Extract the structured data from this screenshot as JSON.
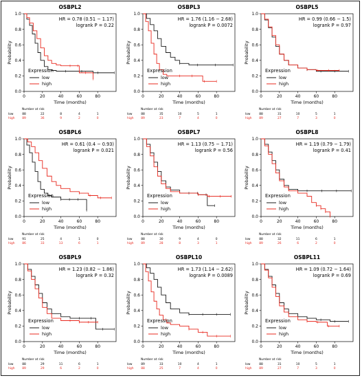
{
  "colors": {
    "low": "#1a1a1a",
    "high": "#e8281e",
    "axis": "#000000",
    "risk_high": "#e8281e"
  },
  "common": {
    "xlabel": "Time (months)",
    "ylabel": "Probability",
    "legend_title": "Expression",
    "legend_low": "low",
    "legend_high": "high",
    "risk_title": "Number at risk",
    "risk_low": "low",
    "risk_high": "high"
  },
  "chart_data": [
    {
      "type": "line",
      "title": "OSBPL2",
      "hr_text": "HR = 0.78 (0.51 − 1.17)",
      "p_text": "logrank P = 0.22",
      "xlim": [
        0,
        100
      ],
      "ylim": [
        0,
        1
      ],
      "xticks": [
        0,
        20,
        40,
        60,
        80
      ],
      "yticks": [
        0.0,
        0.2,
        0.4,
        0.6,
        0.8,
        1.0
      ],
      "ytick_labels": [
        "0.0",
        "0.2",
        "0.4",
        "0.6",
        "0.8",
        "1.0"
      ],
      "series": [
        {
          "name": "low",
          "x": [
            0,
            3,
            6,
            9,
            12,
            15,
            18,
            22,
            26,
            30,
            35,
            45,
            60,
            75,
            98
          ],
          "y": [
            1.0,
            0.93,
            0.85,
            0.74,
            0.62,
            0.5,
            0.4,
            0.32,
            0.28,
            0.27,
            0.26,
            0.26,
            0.26,
            0.24,
            0.24
          ]
        },
        {
          "name": "high",
          "x": [
            0,
            3,
            6,
            10,
            14,
            18,
            22,
            26,
            30,
            35,
            40,
            50,
            60,
            70,
            75
          ],
          "y": [
            1.0,
            0.95,
            0.88,
            0.78,
            0.68,
            0.56,
            0.46,
            0.4,
            0.36,
            0.34,
            0.33,
            0.33,
            0.24,
            0.24,
            0.16
          ]
        }
      ],
      "risk_x": [
        0,
        20,
        40,
        60,
        80
      ],
      "risk_low": [
        "88",
        "22",
        "8",
        "4",
        "1"
      ],
      "risk_high": [
        "89",
        "36",
        "9",
        "2",
        "0"
      ]
    },
    {
      "type": "line",
      "title": "OSBPL3",
      "hr_text": "HR = 1.76 (1.16 − 2.68)",
      "p_text": "logrank P = 0.0072",
      "xlim": [
        0,
        100
      ],
      "ylim": [
        0,
        1
      ],
      "xticks": [
        0,
        20,
        40,
        60,
        80
      ],
      "yticks": [
        0.0,
        0.2,
        0.4,
        0.6,
        0.8,
        1.0
      ],
      "ytick_labels": [
        "0.0",
        "0.2",
        "0.4",
        "0.6",
        "0.8",
        "1.0"
      ],
      "series": [
        {
          "name": "low",
          "x": [
            0,
            4,
            8,
            12,
            16,
            20,
            25,
            30,
            35,
            40,
            50,
            60,
            98
          ],
          "y": [
            1.0,
            0.94,
            0.86,
            0.78,
            0.68,
            0.58,
            0.5,
            0.44,
            0.4,
            0.36,
            0.34,
            0.34,
            0.34
          ]
        },
        {
          "name": "high",
          "x": [
            0,
            3,
            6,
            9,
            12,
            15,
            18,
            22,
            26,
            30,
            40,
            55,
            65,
            80
          ],
          "y": [
            1.0,
            0.9,
            0.78,
            0.62,
            0.48,
            0.36,
            0.28,
            0.22,
            0.2,
            0.2,
            0.2,
            0.2,
            0.13,
            0.13
          ]
        }
      ],
      "risk_x": [
        0,
        20,
        40,
        60,
        80
      ],
      "risk_low": [
        "88",
        "35",
        "10",
        "5",
        "1"
      ],
      "risk_high": [
        "89",
        "23",
        "7",
        "4",
        "0"
      ]
    },
    {
      "type": "line",
      "title": "OSBPL5",
      "hr_text": "HR = 0.99 (0.66 − 1.5)",
      "p_text": "logrank P = 0.97",
      "xlim": [
        0,
        100
      ],
      "ylim": [
        0,
        1
      ],
      "xticks": [
        0,
        20,
        40,
        60,
        80
      ],
      "yticks": [
        0.0,
        0.2,
        0.4,
        0.6,
        0.8,
        1.0
      ],
      "ytick_labels": [
        "0.0",
        "0.2",
        "0.4",
        "0.6",
        "0.8",
        "1.0"
      ],
      "series": [
        {
          "name": "low",
          "x": [
            0,
            4,
            8,
            12,
            16,
            20,
            25,
            30,
            40,
            50,
            60,
            75,
            95
          ],
          "y": [
            1.0,
            0.92,
            0.82,
            0.7,
            0.58,
            0.48,
            0.4,
            0.34,
            0.3,
            0.28,
            0.26,
            0.26,
            0.26
          ]
        },
        {
          "name": "high",
          "x": [
            0,
            4,
            8,
            12,
            16,
            20,
            25,
            30,
            40,
            50,
            60,
            75,
            85
          ],
          "y": [
            1.0,
            0.93,
            0.83,
            0.72,
            0.6,
            0.48,
            0.4,
            0.34,
            0.3,
            0.28,
            0.27,
            0.27,
            0.27
          ]
        }
      ],
      "risk_x": [
        0,
        20,
        40,
        60,
        80
      ],
      "risk_low": [
        "88",
        "31",
        "10",
        "5",
        "1"
      ],
      "risk_high": [
        "89",
        "27",
        "7",
        "3",
        "0"
      ]
    },
    {
      "type": "line",
      "title": "OSBPL6",
      "hr_text": "HR = 0.61 (0.4 − 0.93)",
      "p_text": "logrank P = 0.021",
      "xlim": [
        0,
        100
      ],
      "ylim": [
        0,
        1
      ],
      "xticks": [
        0,
        20,
        40,
        60,
        80
      ],
      "yticks": [
        0.0,
        0.2,
        0.4,
        0.6,
        0.8,
        1.0
      ],
      "ytick_labels": [
        "0.0",
        "0.2",
        "0.4",
        "0.6",
        "0.8",
        "1.0"
      ],
      "series": [
        {
          "name": "low",
          "x": [
            0,
            3,
            6,
            9,
            12,
            15,
            18,
            22,
            26,
            30,
            40,
            50,
            60,
            68
          ],
          "y": [
            1.0,
            0.92,
            0.82,
            0.7,
            0.58,
            0.45,
            0.35,
            0.3,
            0.27,
            0.25,
            0.22,
            0.22,
            0.22,
            0.08
          ]
        },
        {
          "name": "high",
          "x": [
            0,
            4,
            8,
            12,
            16,
            20,
            25,
            30,
            35,
            40,
            50,
            60,
            70,
            80,
            95
          ],
          "y": [
            1.0,
            0.96,
            0.9,
            0.82,
            0.72,
            0.62,
            0.52,
            0.45,
            0.4,
            0.36,
            0.32,
            0.3,
            0.27,
            0.24,
            0.24
          ]
        }
      ],
      "risk_x": [
        0,
        20,
        40,
        60,
        80
      ],
      "risk_low": [
        "91",
        "25",
        "4",
        "1",
        "0"
      ],
      "risk_high": [
        "86",
        "33",
        "13",
        "6",
        "1"
      ]
    },
    {
      "type": "line",
      "title": "OSBPL7",
      "hr_text": "HR = 1.13 (0.75 − 1.71)",
      "p_text": "logrank P = 0.56",
      "xlim": [
        0,
        100
      ],
      "ylim": [
        0,
        1
      ],
      "xticks": [
        0,
        20,
        40,
        60,
        80
      ],
      "yticks": [
        0.0,
        0.2,
        0.4,
        0.6,
        0.8,
        1.0
      ],
      "ytick_labels": [
        "0.0",
        "0.2",
        "0.4",
        "0.6",
        "0.8",
        "1.0"
      ],
      "series": [
        {
          "name": "low",
          "x": [
            0,
            4,
            8,
            12,
            16,
            20,
            25,
            30,
            40,
            50,
            60,
            70,
            78
          ],
          "y": [
            1.0,
            0.93,
            0.82,
            0.7,
            0.58,
            0.46,
            0.38,
            0.34,
            0.3,
            0.3,
            0.28,
            0.14,
            0.14
          ]
        },
        {
          "name": "high",
          "x": [
            0,
            4,
            8,
            12,
            16,
            20,
            25,
            30,
            40,
            50,
            60,
            70,
            78,
            96
          ],
          "y": [
            1.0,
            0.9,
            0.78,
            0.64,
            0.52,
            0.42,
            0.36,
            0.32,
            0.3,
            0.3,
            0.28,
            0.26,
            0.26,
            0.26
          ]
        }
      ],
      "risk_x": [
        0,
        20,
        40,
        60,
        80
      ],
      "risk_low": [
        "88",
        "30",
        "9",
        "4",
        "0"
      ],
      "risk_high": [
        "89",
        "28",
        "8",
        "3",
        "1"
      ]
    },
    {
      "type": "line",
      "title": "OSBPL8",
      "hr_text": "HR = 1.19 (0.79 − 1.79)",
      "p_text": "logrank P = 0.41",
      "xlim": [
        0,
        100
      ],
      "ylim": [
        0,
        1
      ],
      "xticks": [
        0,
        20,
        40,
        60,
        80
      ],
      "yticks": [
        0.0,
        0.2,
        0.4,
        0.6,
        0.8,
        1.0
      ],
      "ytick_labels": [
        "0.0",
        "0.2",
        "0.4",
        "0.6",
        "0.8",
        "1.0"
      ],
      "series": [
        {
          "name": "low",
          "x": [
            0,
            4,
            8,
            12,
            16,
            20,
            25,
            30,
            40,
            50,
            60,
            75,
            98
          ],
          "y": [
            1.0,
            0.93,
            0.83,
            0.72,
            0.6,
            0.48,
            0.4,
            0.35,
            0.33,
            0.33,
            0.33,
            0.33,
            0.33
          ]
        },
        {
          "name": "high",
          "x": [
            0,
            4,
            8,
            12,
            16,
            20,
            25,
            30,
            40,
            50,
            55,
            60,
            65,
            70,
            75
          ],
          "y": [
            1.0,
            0.91,
            0.8,
            0.68,
            0.56,
            0.46,
            0.38,
            0.33,
            0.3,
            0.26,
            0.18,
            0.14,
            0.1,
            0.06,
            0.0
          ]
        }
      ],
      "risk_x": [
        0,
        20,
        40,
        60,
        80
      ],
      "risk_low": [
        "88",
        "32",
        "11",
        "6",
        "1"
      ],
      "risk_high": [
        "89",
        "26",
        "6",
        "2",
        "0"
      ]
    },
    {
      "type": "line",
      "title": "OSBPL9",
      "hr_text": "HR = 1.23 (0.82 − 1.86)",
      "p_text": "logrank P = 0.32",
      "xlim": [
        0,
        100
      ],
      "ylim": [
        0,
        1
      ],
      "xticks": [
        0,
        20,
        40,
        60,
        80
      ],
      "yticks": [
        0.0,
        0.2,
        0.4,
        0.6,
        0.8,
        1.0
      ],
      "ytick_labels": [
        "0.0",
        "0.2",
        "0.4",
        "0.6",
        "0.8",
        "1.0"
      ],
      "series": [
        {
          "name": "low",
          "x": [
            0,
            4,
            8,
            12,
            16,
            20,
            25,
            30,
            40,
            50,
            60,
            72,
            78,
            98
          ],
          "y": [
            1.0,
            0.93,
            0.84,
            0.73,
            0.62,
            0.5,
            0.42,
            0.36,
            0.32,
            0.3,
            0.3,
            0.3,
            0.16,
            0.16
          ]
        },
        {
          "name": "high",
          "x": [
            0,
            4,
            8,
            12,
            16,
            20,
            25,
            30,
            40,
            50,
            60,
            70,
            80
          ],
          "y": [
            1.0,
            0.91,
            0.8,
            0.68,
            0.56,
            0.44,
            0.36,
            0.3,
            0.27,
            0.27,
            0.25,
            0.25,
            0.25
          ]
        }
      ],
      "risk_x": [
        0,
        20,
        40,
        60,
        80
      ],
      "risk_low": [
        "88",
        "29",
        "11",
        "6",
        "1"
      ],
      "risk_high": [
        "89",
        "29",
        "6",
        "2",
        "0"
      ]
    },
    {
      "type": "line",
      "title": "OSBPL10",
      "hr_text": "HR = 1.73 (1.14 − 2.62)",
      "p_text": "logrank P = 0.0089",
      "xlim": [
        0,
        100
      ],
      "ylim": [
        0,
        1
      ],
      "xticks": [
        0,
        20,
        40,
        60,
        80
      ],
      "yticks": [
        0.0,
        0.2,
        0.4,
        0.6,
        0.8,
        1.0
      ],
      "ytick_labels": [
        "0.0",
        "0.2",
        "0.4",
        "0.6",
        "0.8",
        "1.0"
      ],
      "series": [
        {
          "name": "low",
          "x": [
            0,
            4,
            8,
            12,
            16,
            20,
            25,
            30,
            40,
            50,
            60,
            75,
            95
          ],
          "y": [
            1.0,
            0.95,
            0.88,
            0.8,
            0.7,
            0.6,
            0.5,
            0.42,
            0.37,
            0.35,
            0.35,
            0.35,
            0.35
          ]
        },
        {
          "name": "high",
          "x": [
            0,
            3,
            6,
            9,
            12,
            15,
            18,
            22,
            26,
            30,
            40,
            50,
            60,
            70,
            95
          ],
          "y": [
            1.0,
            0.9,
            0.78,
            0.64,
            0.52,
            0.42,
            0.34,
            0.28,
            0.24,
            0.22,
            0.2,
            0.16,
            0.12,
            0.07,
            0.07
          ]
        }
      ],
      "risk_x": [
        0,
        20,
        40,
        60,
        80
      ],
      "risk_low": [
        "89",
        "33",
        "10",
        "4",
        "1"
      ],
      "risk_high": [
        "88",
        "25",
        "7",
        "4",
        "0"
      ]
    },
    {
      "type": "line",
      "title": "OSBPL11",
      "hr_text": "HR = 1.09 (0.72 − 1.64)",
      "p_text": "logrank P = 0.69",
      "xlim": [
        0,
        100
      ],
      "ylim": [
        0,
        1
      ],
      "xticks": [
        0,
        20,
        40,
        60,
        80
      ],
      "yticks": [
        0.0,
        0.2,
        0.4,
        0.6,
        0.8,
        1.0
      ],
      "ytick_labels": [
        "0.0",
        "0.2",
        "0.4",
        "0.6",
        "0.8",
        "1.0"
      ],
      "series": [
        {
          "name": "low",
          "x": [
            0,
            4,
            8,
            12,
            16,
            20,
            25,
            30,
            40,
            50,
            60,
            75,
            95
          ],
          "y": [
            1.0,
            0.93,
            0.84,
            0.73,
            0.62,
            0.5,
            0.42,
            0.36,
            0.32,
            0.3,
            0.28,
            0.26,
            0.26
          ]
        },
        {
          "name": "high",
          "x": [
            0,
            4,
            8,
            12,
            16,
            20,
            25,
            30,
            40,
            50,
            60,
            72,
            85
          ],
          "y": [
            1.0,
            0.92,
            0.82,
            0.7,
            0.58,
            0.46,
            0.38,
            0.32,
            0.28,
            0.26,
            0.25,
            0.2,
            0.2
          ]
        }
      ],
      "risk_x": [
        0,
        20,
        40,
        60,
        80
      ],
      "risk_low": [
        "88",
        "31",
        "10",
        "5",
        "1"
      ],
      "risk_high": [
        "89",
        "27",
        "7",
        "3",
        "0"
      ]
    }
  ]
}
